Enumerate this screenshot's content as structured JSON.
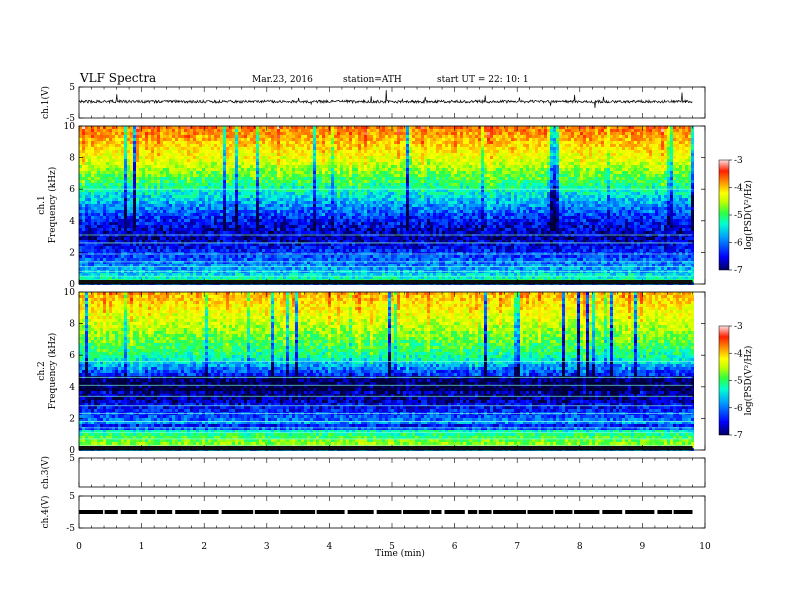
{
  "header": {
    "title": "VLF  Spectra",
    "date": "Mar.23, 2016",
    "station": "station=ATH",
    "start": "start  UT =    22: 10: 1"
  },
  "colors": {
    "colorbar": [
      "#000080",
      "#0000ff",
      "#00a0ff",
      "#00ffd0",
      "#40ff40",
      "#c0ff00",
      "#ffff00",
      "#ffa000",
      "#ff2000",
      "#ffffff"
    ],
    "trace": "#000000"
  },
  "chart_data": [
    {
      "type": "line",
      "name": "ch1-waveform",
      "ylabel": "ch.1(V)",
      "ylim": [
        -5,
        5
      ],
      "y_ticks": [
        "5",
        "-5"
      ],
      "x": [
        0,
        9.8
      ],
      "baseline": 0.3
    },
    {
      "type": "heatmap",
      "name": "ch1-spectrogram",
      "ylabel_channel": "ch.1",
      "ylabel": "Frequency  (kHz)",
      "ylim": [
        0,
        10
      ],
      "y_ticks": [
        "0",
        "2",
        "4",
        "6",
        "8",
        "10"
      ],
      "xlim": [
        0,
        9.8
      ],
      "colorbar": {
        "label": "log(PSD(V²/Hz)",
        "ticks": [
          "-3",
          "-4",
          "-5",
          "-6",
          "-7"
        ],
        "range": [
          -7,
          -3
        ]
      },
      "profile": [
        {
          "f": 10,
          "level": -3.8
        },
        {
          "f": 8,
          "level": -4.6
        },
        {
          "f": 6,
          "level": -5.6
        },
        {
          "f": 4,
          "level": -6.6
        },
        {
          "f": 3,
          "level": -6.8
        },
        {
          "f": 2,
          "level": -6.4
        },
        {
          "f": 1,
          "level": -6.0
        },
        {
          "f": 0.3,
          "level": -5.4
        },
        {
          "f": 0,
          "level": -6.8
        }
      ]
    },
    {
      "type": "heatmap",
      "name": "ch2-spectrogram",
      "ylabel_channel": "ch.2",
      "ylabel": "Frequency  (kHz)",
      "ylim": [
        0,
        10
      ],
      "y_ticks": [
        "0",
        "2",
        "4",
        "6",
        "8",
        "10"
      ],
      "xlim": [
        0,
        9.8
      ],
      "colorbar": {
        "label": "log(PSD(V²/Hz)",
        "ticks": [
          "-3",
          "-4",
          "-5",
          "-6",
          "-7"
        ],
        "range": [
          -7,
          -3
        ]
      },
      "profile": [
        {
          "f": 10,
          "level": -4.1
        },
        {
          "f": 8,
          "level": -4.8
        },
        {
          "f": 6,
          "level": -5.5
        },
        {
          "f": 5,
          "level": -6.4
        },
        {
          "f": 3.5,
          "level": -6.9
        },
        {
          "f": 2,
          "level": -6.2
        },
        {
          "f": 1,
          "level": -5.3
        },
        {
          "f": 0.3,
          "level": -4.8
        },
        {
          "f": 0,
          "level": -6.8
        }
      ]
    },
    {
      "type": "line",
      "name": "ch3-waveform",
      "ylabel": "ch.3(V)",
      "ylim": [
        -5,
        5
      ],
      "y_ticks": [
        "5"
      ],
      "values": []
    },
    {
      "type": "line",
      "name": "ch4-waveform",
      "ylabel": "ch.4(V)",
      "ylim": [
        -5,
        5
      ],
      "y_ticks": [
        "5",
        "-5"
      ],
      "x": [
        0,
        9.8
      ],
      "baseline": 0
    }
  ],
  "x_axis": {
    "label": "Time  (min)",
    "ticks": [
      "0",
      "1",
      "2",
      "3",
      "4",
      "5",
      "6",
      "7",
      "8",
      "9",
      "10"
    ],
    "xlim": [
      0,
      10
    ]
  }
}
